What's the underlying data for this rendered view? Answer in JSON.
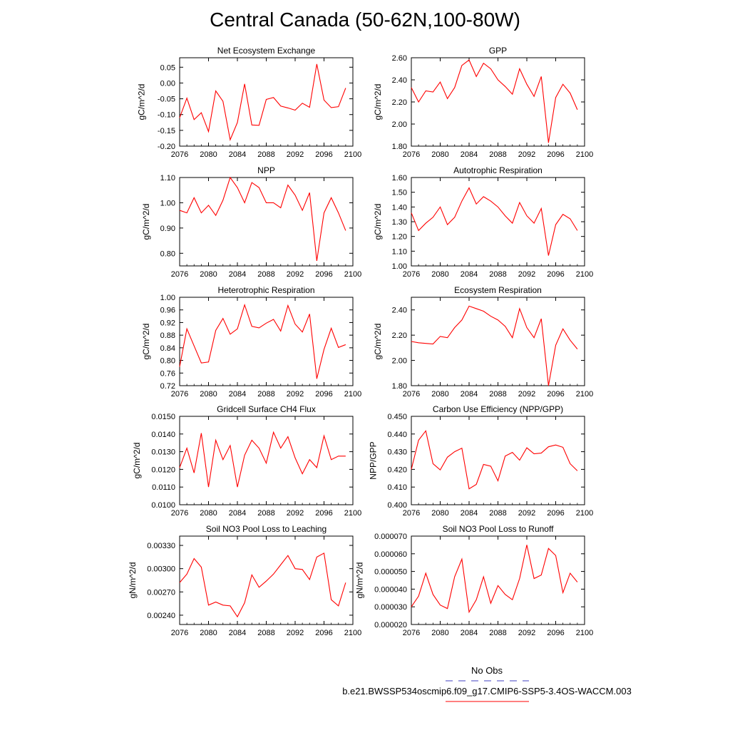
{
  "title": "Central Canada (50-62N,100-80W)",
  "legend": {
    "entries": [
      {
        "label": "No Obs",
        "color": "#4040c0",
        "style": "dashed"
      },
      {
        "label": "b.e21.BWSSP534oscmip6.f09_g17.CMIP6-SSP5-3.4OS-WACCM.003",
        "color": "#ff0000",
        "style": "solid"
      }
    ]
  },
  "chart_data": [
    {
      "type": "line",
      "title": "Net Ecosystem Exchange",
      "ylabel": "gC/m^2/d",
      "xlim": [
        2076,
        2100
      ],
      "ylim": [
        -0.2,
        0.08
      ],
      "xticks": [
        "2076",
        "2080",
        "2084",
        "2088",
        "2092",
        "2096",
        "2100"
      ],
      "yticks": [
        -0.2,
        -0.15,
        -0.1,
        -0.05,
        0.0,
        0.05
      ],
      "ytick_labels": [
        "-0.20",
        "-0.15",
        "-0.10",
        "-0.05",
        "0.00",
        "0.05"
      ],
      "x": [
        2076,
        2077,
        2078,
        2079,
        2080,
        2081,
        2082,
        2083,
        2084,
        2085,
        2086,
        2087,
        2088,
        2089,
        2090,
        2091,
        2092,
        2093,
        2094,
        2095,
        2096,
        2097,
        2098,
        2099
      ],
      "series": [
        {
          "values": [
            -0.11,
            -0.048,
            -0.116,
            -0.094,
            -0.154,
            -0.025,
            -0.058,
            -0.18,
            -0.125,
            -0.003,
            -0.133,
            -0.134,
            -0.052,
            -0.046,
            -0.073,
            -0.079,
            -0.086,
            -0.064,
            -0.077,
            0.06,
            -0.054,
            -0.078,
            -0.075,
            -0.016
          ],
          "color": "#ff0000"
        }
      ]
    },
    {
      "type": "line",
      "title": "GPP",
      "ylabel": "gC/m^2/d",
      "xlim": [
        2076,
        2100
      ],
      "ylim": [
        1.8,
        2.6
      ],
      "xticks": [
        "2076",
        "2080",
        "2084",
        "2088",
        "2092",
        "2096",
        "2100"
      ],
      "yticks": [
        1.8,
        2.0,
        2.2,
        2.4,
        2.6
      ],
      "ytick_labels": [
        "1.80",
        "2.00",
        "2.20",
        "2.40",
        "2.60"
      ],
      "x": [
        2076,
        2077,
        2078,
        2079,
        2080,
        2081,
        2082,
        2083,
        2084,
        2085,
        2086,
        2087,
        2088,
        2089,
        2090,
        2091,
        2092,
        2093,
        2094,
        2095,
        2096,
        2097,
        2098,
        2099
      ],
      "series": [
        {
          "values": [
            2.33,
            2.2,
            2.3,
            2.29,
            2.38,
            2.23,
            2.33,
            2.53,
            2.58,
            2.43,
            2.55,
            2.5,
            2.4,
            2.34,
            2.27,
            2.5,
            2.36,
            2.25,
            2.43,
            1.83,
            2.24,
            2.36,
            2.28,
            2.13
          ],
          "color": "#ff0000"
        }
      ]
    },
    {
      "type": "line",
      "title": "NPP",
      "ylabel": "gC/m^2/d",
      "xlim": [
        2076,
        2100
      ],
      "ylim": [
        0.75,
        1.1
      ],
      "xticks": [
        "2076",
        "2080",
        "2084",
        "2088",
        "2092",
        "2096",
        "2100"
      ],
      "yticks": [
        0.8,
        0.9,
        1.0,
        1.1
      ],
      "ytick_labels": [
        "0.80",
        "0.90",
        "1.00",
        "1.10"
      ],
      "x": [
        2076,
        2077,
        2078,
        2079,
        2080,
        2081,
        2082,
        2083,
        2084,
        2085,
        2086,
        2087,
        2088,
        2089,
        2090,
        2091,
        2092,
        2093,
        2094,
        2095,
        2096,
        2097,
        2098,
        2099
      ],
      "series": [
        {
          "values": [
            0.97,
            0.96,
            1.02,
            0.96,
            0.99,
            0.95,
            1.01,
            1.1,
            1.06,
            1.0,
            1.08,
            1.06,
            1.0,
            1.0,
            0.98,
            1.07,
            1.03,
            0.97,
            1.04,
            0.77,
            0.96,
            1.02,
            0.96,
            0.89
          ],
          "color": "#ff0000"
        }
      ]
    },
    {
      "type": "line",
      "title": "Autotrophic Respiration",
      "ylabel": "gC/m^2/d",
      "xlim": [
        2076,
        2100
      ],
      "ylim": [
        1.0,
        1.6
      ],
      "xticks": [
        "2076",
        "2080",
        "2084",
        "2088",
        "2092",
        "2096",
        "2100"
      ],
      "yticks": [
        1.0,
        1.1,
        1.2,
        1.3,
        1.4,
        1.5,
        1.6
      ],
      "ytick_labels": [
        "1.00",
        "1.10",
        "1.20",
        "1.30",
        "1.40",
        "1.50",
        "1.60"
      ],
      "x": [
        2076,
        2077,
        2078,
        2079,
        2080,
        2081,
        2082,
        2083,
        2084,
        2085,
        2086,
        2087,
        2088,
        2089,
        2090,
        2091,
        2092,
        2093,
        2094,
        2095,
        2096,
        2097,
        2098,
        2099
      ],
      "series": [
        {
          "values": [
            1.36,
            1.24,
            1.29,
            1.33,
            1.4,
            1.28,
            1.33,
            1.44,
            1.53,
            1.42,
            1.47,
            1.44,
            1.4,
            1.34,
            1.29,
            1.43,
            1.34,
            1.29,
            1.39,
            1.07,
            1.28,
            1.35,
            1.32,
            1.24
          ],
          "color": "#ff0000"
        }
      ]
    },
    {
      "type": "line",
      "title": "Heterotrophic Respiration",
      "ylabel": "gC/m^2/d",
      "xlim": [
        2076,
        2100
      ],
      "ylim": [
        0.72,
        1.0
      ],
      "xticks": [
        "2076",
        "2080",
        "2084",
        "2088",
        "2092",
        "2096",
        "2100"
      ],
      "yticks": [
        0.72,
        0.76,
        0.8,
        0.84,
        0.88,
        0.92,
        0.96,
        1.0
      ],
      "ytick_labels": [
        "0.72",
        "0.76",
        "0.80",
        "0.84",
        "0.88",
        "0.92",
        "0.96",
        "1.00"
      ],
      "x": [
        2076,
        2077,
        2078,
        2079,
        2080,
        2081,
        2082,
        2083,
        2084,
        2085,
        2086,
        2087,
        2088,
        2089,
        2090,
        2091,
        2092,
        2093,
        2094,
        2095,
        2096,
        2097,
        2098,
        2099
      ],
      "series": [
        {
          "values": [
            0.78,
            0.9,
            0.846,
            0.792,
            0.795,
            0.895,
            0.933,
            0.883,
            0.9,
            0.976,
            0.908,
            0.903,
            0.918,
            0.93,
            0.893,
            0.974,
            0.915,
            0.89,
            0.947,
            0.742,
            0.835,
            0.902,
            0.841,
            0.85
          ],
          "color": "#ff0000"
        }
      ]
    },
    {
      "type": "line",
      "title": "Ecosystem Respiration",
      "ylabel": "gC/m^2/d",
      "xlim": [
        2076,
        2100
      ],
      "ylim": [
        1.8,
        2.5
      ],
      "xticks": [
        "2076",
        "2080",
        "2084",
        "2088",
        "2092",
        "2096",
        "2100"
      ],
      "yticks": [
        1.8,
        2.0,
        2.2,
        2.4
      ],
      "ytick_labels": [
        "1.80",
        "2.00",
        "2.20",
        "2.40"
      ],
      "x": [
        2076,
        2077,
        2078,
        2079,
        2080,
        2081,
        2082,
        2083,
        2084,
        2085,
        2086,
        2087,
        2088,
        2089,
        2090,
        2091,
        2092,
        2093,
        2094,
        2095,
        2096,
        2097,
        2098,
        2099
      ],
      "series": [
        {
          "values": [
            2.15,
            2.14,
            2.135,
            2.13,
            2.19,
            2.18,
            2.26,
            2.32,
            2.43,
            2.41,
            2.39,
            2.35,
            2.32,
            2.27,
            2.18,
            2.41,
            2.26,
            2.18,
            2.33,
            1.8,
            2.12,
            2.25,
            2.16,
            2.09
          ],
          "color": "#ff0000"
        }
      ]
    },
    {
      "type": "line",
      "title": "Gridcell Surface CH4 Flux",
      "ylabel": "gC/m^2/d",
      "xlim": [
        2076,
        2100
      ],
      "ylim": [
        0.01,
        0.015
      ],
      "xticks": [
        "2076",
        "2080",
        "2084",
        "2088",
        "2092",
        "2096",
        "2100"
      ],
      "yticks": [
        0.01,
        0.011,
        0.012,
        0.013,
        0.014,
        0.015
      ],
      "ytick_labels": [
        "0.0100",
        "0.0110",
        "0.0120",
        "0.0130",
        "0.0140",
        "0.0150"
      ],
      "x": [
        2076,
        2077,
        2078,
        2079,
        2080,
        2081,
        2082,
        2083,
        2084,
        2085,
        2086,
        2087,
        2088,
        2089,
        2090,
        2091,
        2092,
        2093,
        2094,
        2095,
        2096,
        2097,
        2098,
        2099
      ],
      "series": [
        {
          "values": [
            0.0121,
            0.0132,
            0.0118,
            0.01405,
            0.011,
            0.01365,
            0.01255,
            0.01335,
            0.011,
            0.0128,
            0.01365,
            0.0132,
            0.01235,
            0.0141,
            0.0132,
            0.01385,
            0.01265,
            0.01175,
            0.01255,
            0.0121,
            0.0139,
            0.01255,
            0.01275,
            0.01275
          ],
          "color": "#ff0000"
        }
      ]
    },
    {
      "type": "line",
      "title": "Carbon Use Efficiency (NPP/GPP)",
      "ylabel": "NPP/GPP",
      "xlim": [
        2076,
        2100
      ],
      "ylim": [
        0.4,
        0.45
      ],
      "xticks": [
        "2076",
        "2080",
        "2084",
        "2088",
        "2092",
        "2096",
        "2100"
      ],
      "yticks": [
        0.4,
        0.41,
        0.42,
        0.43,
        0.44,
        0.45
      ],
      "ytick_labels": [
        "0.400",
        "0.410",
        "0.420",
        "0.430",
        "0.440",
        "0.450"
      ],
      "x": [
        2076,
        2077,
        2078,
        2079,
        2080,
        2081,
        2082,
        2083,
        2084,
        2085,
        2086,
        2087,
        2088,
        2089,
        2090,
        2091,
        2092,
        2093,
        2094,
        2095,
        2096,
        2097,
        2098,
        2099
      ],
      "series": [
        {
          "values": [
            0.42,
            0.4365,
            0.4418,
            0.4232,
            0.4197,
            0.4269,
            0.43,
            0.432,
            0.409,
            0.4115,
            0.4228,
            0.4218,
            0.4135,
            0.4275,
            0.4296,
            0.4252,
            0.4322,
            0.4288,
            0.4292,
            0.4328,
            0.4338,
            0.4325,
            0.4232,
            0.4192
          ],
          "color": "#ff0000"
        }
      ]
    },
    {
      "type": "line",
      "title": "Soil NO3 Pool Loss to Leaching",
      "ylabel": "gN/m^2/d",
      "xlim": [
        2076,
        2100
      ],
      "ylim": [
        0.00228,
        0.00342
      ],
      "xticks": [
        "2076",
        "2080",
        "2084",
        "2088",
        "2092",
        "2096",
        "2100"
      ],
      "yticks": [
        0.0024,
        0.0027,
        0.003,
        0.0033
      ],
      "ytick_labels": [
        "0.00240",
        "0.00270",
        "0.00300",
        "0.00330"
      ],
      "x": [
        2076,
        2077,
        2078,
        2079,
        2080,
        2081,
        2082,
        2083,
        2084,
        2085,
        2086,
        2087,
        2088,
        2089,
        2090,
        2091,
        2092,
        2093,
        2094,
        2095,
        2096,
        2097,
        2098,
        2099
      ],
      "series": [
        {
          "values": [
            0.00282,
            0.00293,
            0.00313,
            0.00302,
            0.00253,
            0.00257,
            0.00253,
            0.00252,
            0.00238,
            0.00256,
            0.00292,
            0.00276,
            0.00284,
            0.00293,
            0.00305,
            0.00317,
            0.003,
            0.00299,
            0.00286,
            0.00315,
            0.0032,
            0.0026,
            0.00252,
            0.00282
          ],
          "color": "#ff0000"
        }
      ]
    },
    {
      "type": "line",
      "title": "Soil NO3 Pool Loss to Runoff",
      "ylabel": "gN/m^2/d",
      "xlim": [
        2076,
        2100
      ],
      "ylim": [
        2e-05,
        7e-05
      ],
      "xticks": [
        "2076",
        "2080",
        "2084",
        "2088",
        "2092",
        "2096",
        "2100"
      ],
      "yticks": [
        2e-05,
        3e-05,
        4e-05,
        5e-05,
        6e-05,
        7e-05
      ],
      "ytick_labels": [
        "0.000020",
        "0.000030",
        "0.000040",
        "0.000050",
        "0.000060",
        "0.000070"
      ],
      "x": [
        2076,
        2077,
        2078,
        2079,
        2080,
        2081,
        2082,
        2083,
        2084,
        2085,
        2086,
        2087,
        2088,
        2089,
        2090,
        2091,
        2092,
        2093,
        2094,
        2095,
        2096,
        2097,
        2098,
        2099
      ],
      "series": [
        {
          "values": [
            3e-05,
            3.6e-05,
            4.9e-05,
            3.7e-05,
            3.1e-05,
            2.9e-05,
            4.7e-05,
            5.7e-05,
            2.7e-05,
            3.4e-05,
            4.7e-05,
            3.2e-05,
            4.2e-05,
            3.7e-05,
            3.4e-05,
            4.6e-05,
            6.5e-05,
            4.6e-05,
            4.8e-05,
            6.3e-05,
            5.9e-05,
            3.8e-05,
            4.9e-05,
            4.4e-05
          ],
          "color": "#ff0000"
        }
      ]
    }
  ]
}
